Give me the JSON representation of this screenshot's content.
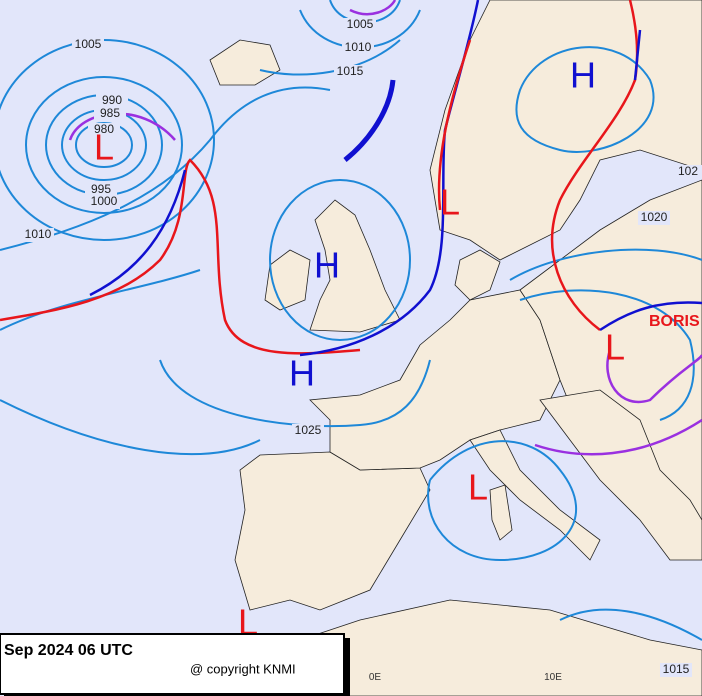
{
  "map": {
    "isobar_labels": [
      1005,
      1010,
      1015,
      1005,
      990,
      985,
      980,
      995,
      1000,
      1010,
      1025,
      1020,
      102,
      1015
    ],
    "pressure_centers": [
      "L",
      "H",
      "L",
      "H",
      "H",
      "L",
      "L",
      "L"
    ],
    "storm_name": "BORIS",
    "longitude_labels": [
      "0E",
      "10E"
    ],
    "footer": {
      "time": "Sep 2024 06 UTC",
      "copyright": "@ copyright KNMI"
    }
  }
}
